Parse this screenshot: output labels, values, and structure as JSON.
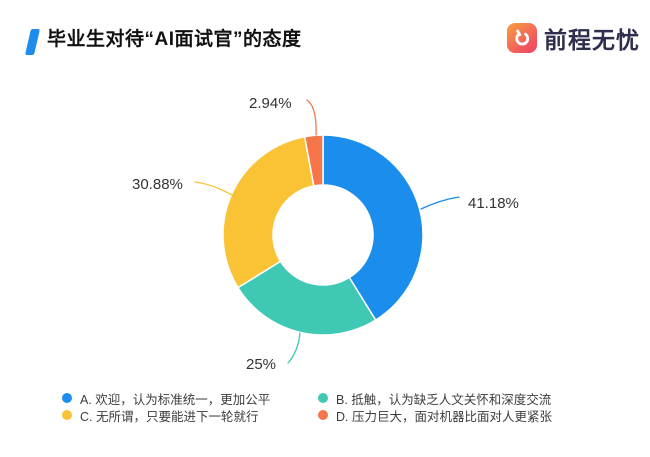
{
  "header": {
    "title": "毕业生对待“AI面试官”的态度",
    "accent_color": "#1e8ceb",
    "logo": {
      "text": "前程无忧",
      "icon": "hand-logo-icon",
      "gradient_start": "#f8a13c",
      "gradient_end": "#ee4360",
      "text_color": "#2d2f4d"
    }
  },
  "chart_data": {
    "type": "pie",
    "subtype": "donut",
    "title": "毕业生对待“AI面试官”的态度",
    "start_angle": "top",
    "direction": "clockwise",
    "inner_radius_ratio": 0.5,
    "legend_position": "bottom",
    "background": "#ffffff",
    "label_color": "#333333",
    "series": [
      {
        "name": "A. 欢迎，认为标准统一，更加公平",
        "value": 41.18,
        "label": "41.18%",
        "color": "#1b8ded"
      },
      {
        "name": "B. 抵触，认为缺乏人文关怀和深度交流",
        "value": 25,
        "label": "25%",
        "color": "#3fc8b4"
      },
      {
        "name": "C. 无所谓，只要能进下一轮就行",
        "value": 30.88,
        "label": "30.88%",
        "color": "#fac336"
      },
      {
        "name": "D. 压力巨大，面对机器比面对人更紧张",
        "value": 2.94,
        "label": "2.94%",
        "color": "#f4764a"
      }
    ]
  }
}
